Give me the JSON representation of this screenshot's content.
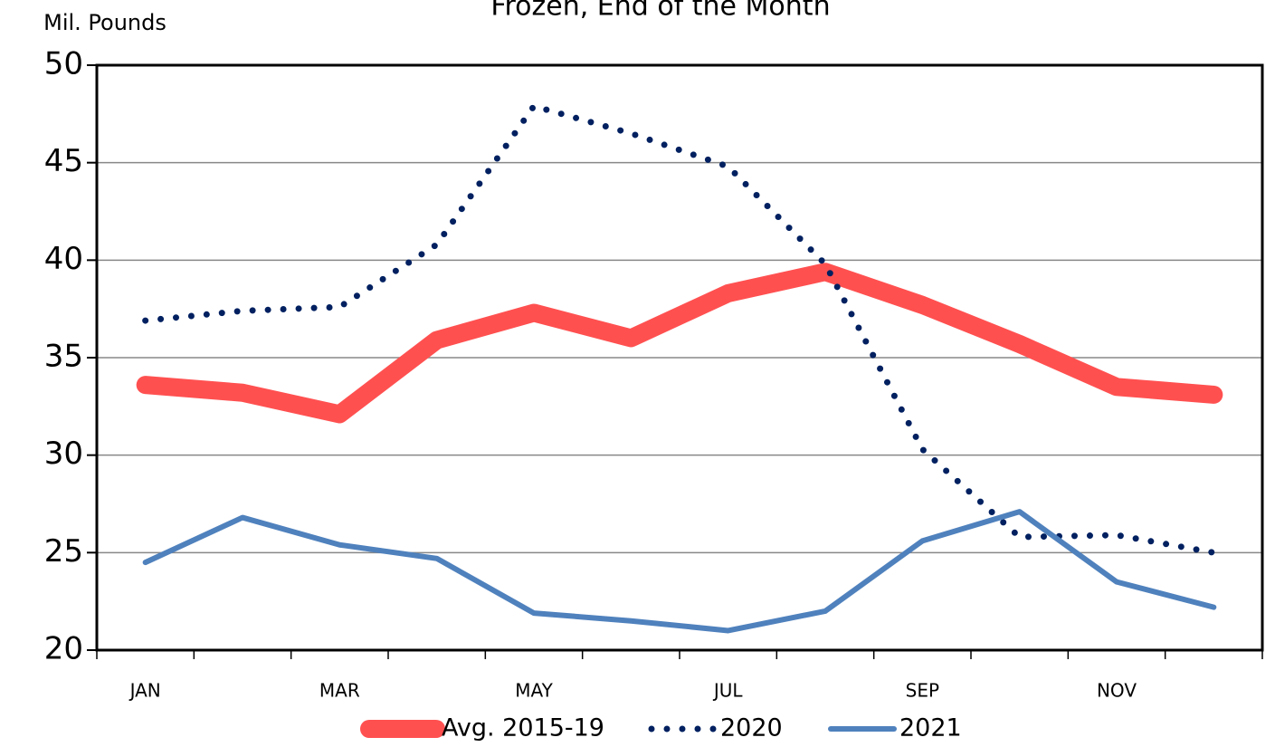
{
  "chart_data": {
    "type": "line",
    "title": "Frozen, End of the Month",
    "y_label": "Mil. Pounds",
    "categories": [
      "JAN",
      null,
      "MAR",
      null,
      "MAY",
      null,
      "JUL",
      null,
      "SEP",
      null,
      "NOV",
      null
    ],
    "series": [
      {
        "name": "Avg. 2015-19",
        "color": "#ff5050",
        "line_style": "thick",
        "values": [
          33.6,
          33.2,
          32.1,
          35.9,
          37.3,
          36.0,
          38.3,
          39.4,
          37.7,
          35.7,
          33.5,
          33.1
        ]
      },
      {
        "name": "2020",
        "color": "#002060",
        "line_style": "dotted",
        "values": [
          36.9,
          37.4,
          37.6,
          40.8,
          47.9,
          46.5,
          44.8,
          39.8,
          30.3,
          25.8,
          25.9,
          25.0
        ]
      },
      {
        "name": "2021",
        "color": "#4f81bd",
        "line_style": "solid",
        "values": [
          24.5,
          26.8,
          25.4,
          24.7,
          21.9,
          21.5,
          21.0,
          22.0,
          25.6,
          27.1,
          23.5,
          22.2
        ]
      }
    ],
    "ylim": [
      20,
      50
    ],
    "yticks": [
      20,
      25,
      30,
      35,
      40,
      45,
      50
    ],
    "grid": true,
    "legend": "bottom"
  }
}
